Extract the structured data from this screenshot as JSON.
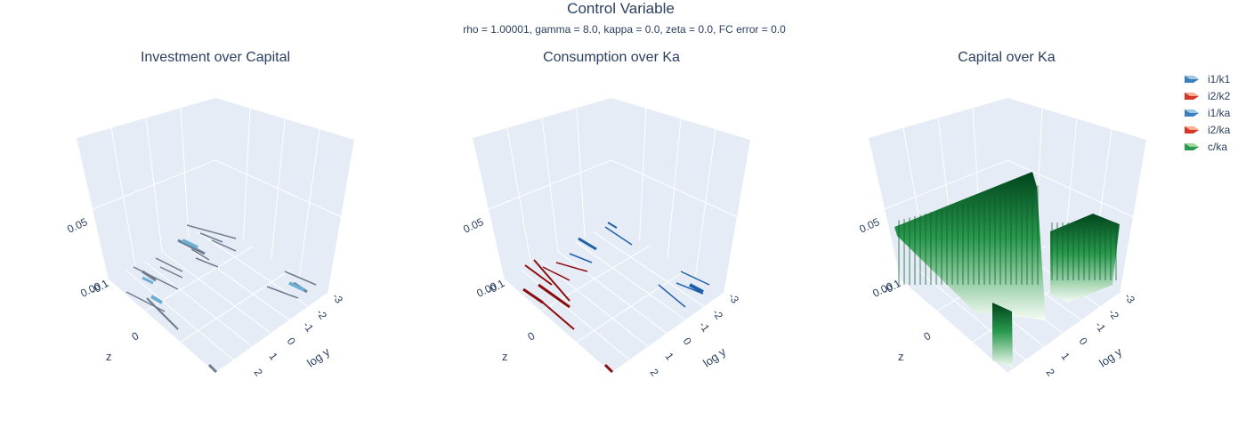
{
  "title": "Control Variable",
  "subtitle": "rho = 1.00001, gamma = 8.0, kappa = 0.0, zeta = 0.0, FC error = 0.0",
  "legend": [
    {
      "name": "i1/k1",
      "color": "#3b7fc0"
    },
    {
      "name": "i2/k2",
      "color": "#d8352a"
    },
    {
      "name": "i1/ka",
      "color": "#3b7fc0"
    },
    {
      "name": "i2/ka",
      "color": "#d8352a"
    },
    {
      "name": "c/ka",
      "color": "#2a9a4e"
    }
  ],
  "colors": {
    "scene_bg": "#e5ecf6",
    "grid": "#ffffff",
    "blue_dark": "#08306b",
    "blue_light": "#6baed6",
    "red_dark": "#67000d",
    "red_light": "#fb6a4a",
    "green_dark": "#00441b",
    "green_light": "#f7fcf5"
  },
  "chart_data": [
    {
      "type": "surface3d",
      "title": "Investment over Capital",
      "axes": {
        "x": {
          "title": "z",
          "tick_labels": [
            "-0.1",
            "0"
          ]
        },
        "y": {
          "title": "log y",
          "tick_labels": [
            "-3",
            "-2",
            "-1",
            "0",
            "1",
            "2"
          ]
        },
        "z": {
          "title": "",
          "tick_labels": [
            "0.00",
            "0.05"
          ]
        }
      },
      "series": [
        {
          "name": "i1/k1"
        },
        {
          "name": "i2/k2"
        }
      ]
    },
    {
      "type": "surface3d",
      "title": "Consumption over Ka",
      "axes": {
        "x": {
          "title": "z",
          "tick_labels": [
            "-0.1",
            "0"
          ]
        },
        "y": {
          "title": "log y",
          "tick_labels": [
            "-3",
            "-2",
            "-1",
            "0",
            "1",
            "2"
          ]
        },
        "z": {
          "title": "",
          "tick_labels": [
            "0.00",
            "0.05"
          ]
        }
      },
      "series": [
        {
          "name": "i1/ka"
        },
        {
          "name": "i2/ka"
        }
      ]
    },
    {
      "type": "surface3d",
      "title": "Capital over Ka",
      "axes": {
        "x": {
          "title": "z",
          "tick_labels": [
            "-0.1",
            "0"
          ]
        },
        "y": {
          "title": "log y",
          "tick_labels": [
            "-3",
            "-2",
            "-1",
            "0",
            "1",
            "2"
          ]
        },
        "z": {
          "title": "",
          "tick_labels": [
            "0.00",
            "0.05"
          ]
        }
      },
      "series": [
        {
          "name": "c/ka"
        }
      ]
    }
  ]
}
